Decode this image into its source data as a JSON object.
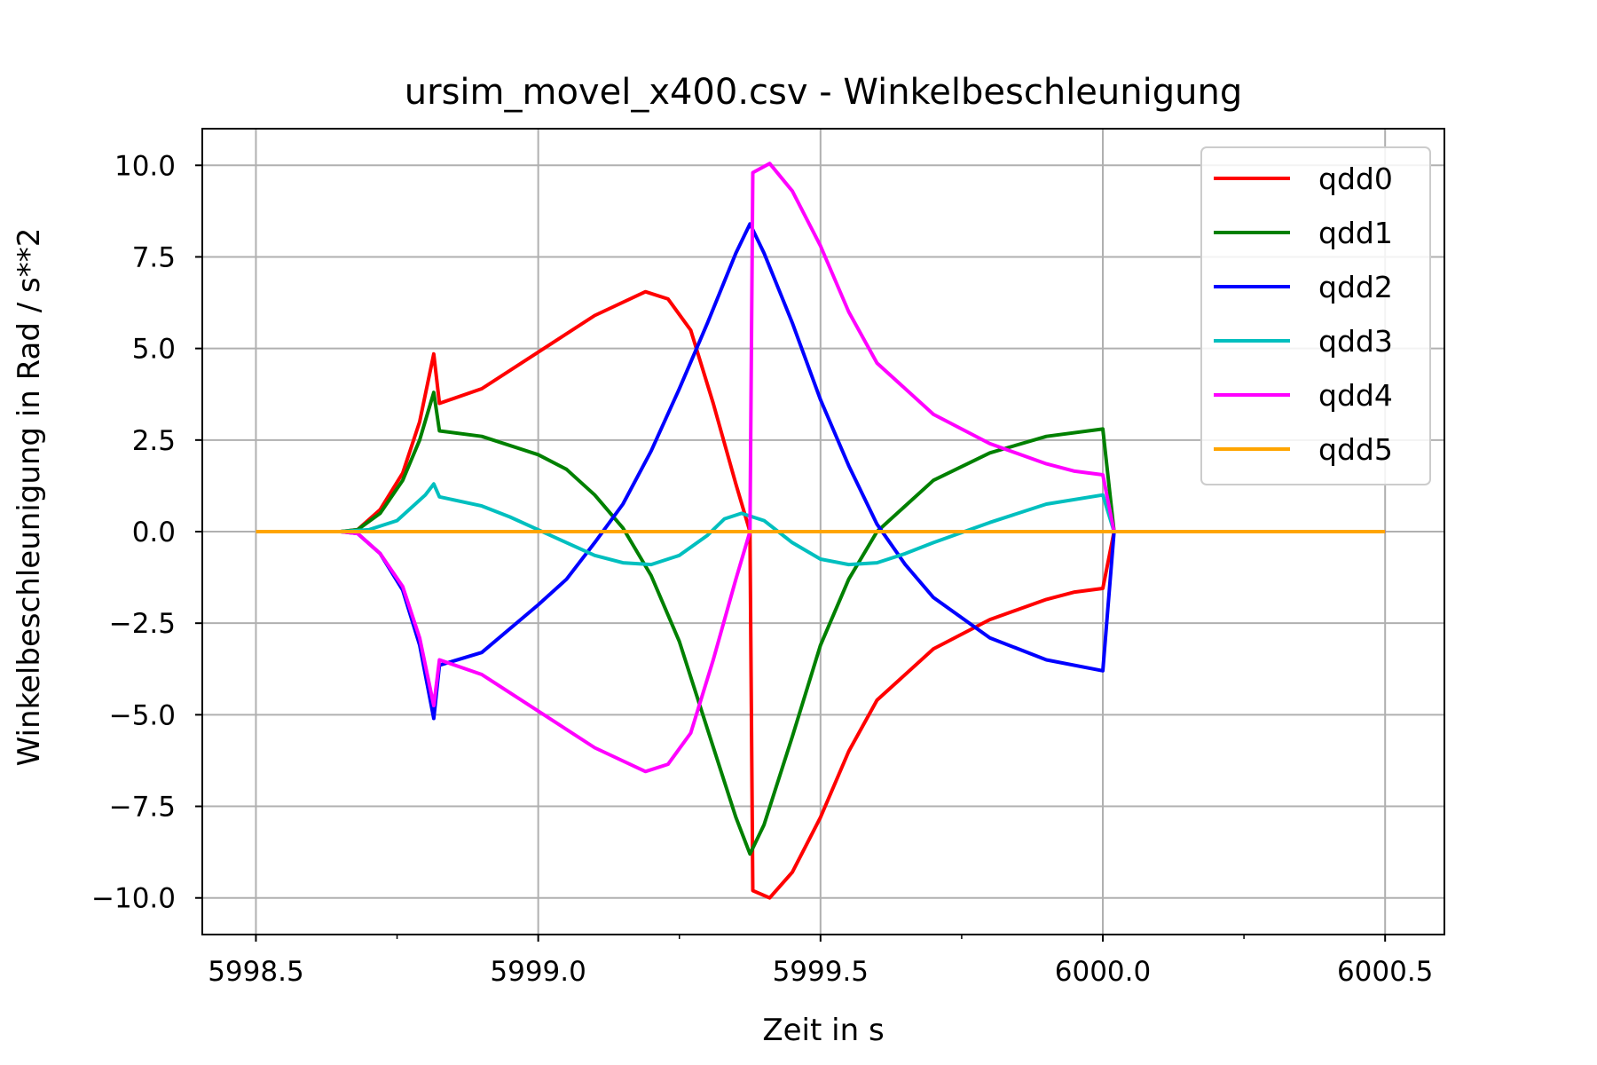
{
  "chart_data": {
    "type": "line",
    "title": "ursim_movel_x400.csv - Winkelbeschleunigung",
    "xlabel": "Zeit in s",
    "ylabel": "Winkelbeschleunigung in Rad / s**2",
    "xlim": [
      5998.405,
      6000.605
    ],
    "ylim": [
      -11.0,
      11.0
    ],
    "xticks": [
      5998.5,
      5999.0,
      5999.5,
      6000.0,
      6000.5
    ],
    "xtick_labels": [
      "5998.5",
      "5999.0",
      "5999.5",
      "6000.0",
      "6000.5"
    ],
    "xminor_ticks": [
      5998.75,
      5999.25,
      5999.75,
      6000.25
    ],
    "yticks": [
      10.0,
      7.5,
      5.0,
      2.5,
      0.0,
      -2.5,
      -5.0,
      -7.5,
      -10.0
    ],
    "ytick_labels": [
      "10.0",
      "7.5",
      "5.0",
      "2.5",
      "0.0",
      "−2.5",
      "−5.0",
      "−7.5",
      "−10.0"
    ],
    "grid": true,
    "legend_position": "top-right",
    "series": [
      {
        "name": "qdd0",
        "color": "#ff0000",
        "points": [
          [
            5998.5,
            0
          ],
          [
            5998.65,
            0
          ],
          [
            5998.68,
            0.05
          ],
          [
            5998.72,
            0.6
          ],
          [
            5998.76,
            1.6
          ],
          [
            5998.79,
            3.0
          ],
          [
            5998.815,
            4.85
          ],
          [
            5998.825,
            3.5
          ],
          [
            5998.9,
            3.9
          ],
          [
            5999.0,
            4.9
          ],
          [
            5999.1,
            5.9
          ],
          [
            5999.19,
            6.55
          ],
          [
            5999.23,
            6.35
          ],
          [
            5999.27,
            5.5
          ],
          [
            5999.31,
            3.5
          ],
          [
            5999.35,
            1.3
          ],
          [
            5999.375,
            0
          ],
          [
            5999.38,
            -9.8
          ],
          [
            5999.41,
            -10.0
          ],
          [
            5999.45,
            -9.3
          ],
          [
            5999.5,
            -7.8
          ],
          [
            5999.55,
            -6.0
          ],
          [
            5999.6,
            -4.6
          ],
          [
            5999.7,
            -3.2
          ],
          [
            5999.8,
            -2.4
          ],
          [
            5999.9,
            -1.85
          ],
          [
            5999.95,
            -1.65
          ],
          [
            6000.0,
            -1.55
          ],
          [
            6000.02,
            0
          ],
          [
            6000.5,
            0
          ]
        ]
      },
      {
        "name": "qdd1",
        "color": "#008000",
        "points": [
          [
            5998.5,
            0
          ],
          [
            5998.65,
            0
          ],
          [
            5998.68,
            0.05
          ],
          [
            5998.72,
            0.5
          ],
          [
            5998.76,
            1.4
          ],
          [
            5998.79,
            2.5
          ],
          [
            5998.815,
            3.8
          ],
          [
            5998.825,
            2.75
          ],
          [
            5998.9,
            2.6
          ],
          [
            5999.0,
            2.1
          ],
          [
            5999.05,
            1.7
          ],
          [
            5999.1,
            1.0
          ],
          [
            5999.15,
            0.1
          ],
          [
            5999.2,
            -1.2
          ],
          [
            5999.25,
            -3.0
          ],
          [
            5999.3,
            -5.4
          ],
          [
            5999.35,
            -7.8
          ],
          [
            5999.375,
            -8.8
          ],
          [
            5999.4,
            -8.0
          ],
          [
            5999.45,
            -5.6
          ],
          [
            5999.5,
            -3.1
          ],
          [
            5999.55,
            -1.3
          ],
          [
            5999.6,
            0
          ],
          [
            5999.7,
            1.4
          ],
          [
            5999.8,
            2.15
          ],
          [
            5999.9,
            2.6
          ],
          [
            6000.0,
            2.8
          ],
          [
            6000.02,
            0
          ],
          [
            6000.5,
            0
          ]
        ]
      },
      {
        "name": "qdd2",
        "color": "#0000ff",
        "points": [
          [
            5998.5,
            0
          ],
          [
            5998.65,
            0
          ],
          [
            5998.68,
            -0.05
          ],
          [
            5998.72,
            -0.6
          ],
          [
            5998.76,
            -1.6
          ],
          [
            5998.79,
            -3.1
          ],
          [
            5998.815,
            -5.1
          ],
          [
            5998.825,
            -3.65
          ],
          [
            5998.9,
            -3.3
          ],
          [
            5999.0,
            -2.0
          ],
          [
            5999.05,
            -1.3
          ],
          [
            5999.1,
            -0.3
          ],
          [
            5999.15,
            0.75
          ],
          [
            5999.2,
            2.2
          ],
          [
            5999.25,
            3.9
          ],
          [
            5999.3,
            5.7
          ],
          [
            5999.35,
            7.6
          ],
          [
            5999.375,
            8.4
          ],
          [
            5999.4,
            7.6
          ],
          [
            5999.45,
            5.7
          ],
          [
            5999.5,
            3.6
          ],
          [
            5999.55,
            1.8
          ],
          [
            5999.6,
            0.2
          ],
          [
            5999.65,
            -0.9
          ],
          [
            5999.7,
            -1.8
          ],
          [
            5999.8,
            -2.9
          ],
          [
            5999.9,
            -3.5
          ],
          [
            6000.0,
            -3.8
          ],
          [
            6000.02,
            0
          ],
          [
            6000.5,
            0
          ]
        ]
      },
      {
        "name": "qdd3",
        "color": "#00bfbf",
        "points": [
          [
            5998.5,
            0
          ],
          [
            5998.65,
            0
          ],
          [
            5998.7,
            0.05
          ],
          [
            5998.75,
            0.3
          ],
          [
            5998.8,
            1.0
          ],
          [
            5998.815,
            1.3
          ],
          [
            5998.825,
            0.95
          ],
          [
            5998.9,
            0.7
          ],
          [
            5998.95,
            0.4
          ],
          [
            5999.0,
            0.05
          ],
          [
            5999.05,
            -0.3
          ],
          [
            5999.1,
            -0.65
          ],
          [
            5999.15,
            -0.85
          ],
          [
            5999.2,
            -0.9
          ],
          [
            5999.25,
            -0.65
          ],
          [
            5999.3,
            -0.1
          ],
          [
            5999.33,
            0.35
          ],
          [
            5999.36,
            0.5
          ],
          [
            5999.4,
            0.3
          ],
          [
            5999.45,
            -0.3
          ],
          [
            5999.5,
            -0.75
          ],
          [
            5999.55,
            -0.9
          ],
          [
            5999.6,
            -0.85
          ],
          [
            5999.65,
            -0.6
          ],
          [
            5999.7,
            -0.3
          ],
          [
            5999.8,
            0.25
          ],
          [
            5999.9,
            0.75
          ],
          [
            6000.0,
            1.0
          ],
          [
            6000.02,
            0
          ],
          [
            6000.5,
            0
          ]
        ]
      },
      {
        "name": "qdd4",
        "color": "#ff00ff",
        "points": [
          [
            5998.5,
            0
          ],
          [
            5998.65,
            0
          ],
          [
            5998.68,
            -0.05
          ],
          [
            5998.72,
            -0.6
          ],
          [
            5998.76,
            -1.5
          ],
          [
            5998.79,
            -2.9
          ],
          [
            5998.815,
            -4.75
          ],
          [
            5998.825,
            -3.5
          ],
          [
            5998.9,
            -3.9
          ],
          [
            5999.0,
            -4.9
          ],
          [
            5999.1,
            -5.9
          ],
          [
            5999.19,
            -6.55
          ],
          [
            5999.23,
            -6.35
          ],
          [
            5999.27,
            -5.5
          ],
          [
            5999.31,
            -3.5
          ],
          [
            5999.35,
            -1.3
          ],
          [
            5999.375,
            0
          ],
          [
            5999.38,
            9.8
          ],
          [
            5999.41,
            10.05
          ],
          [
            5999.45,
            9.3
          ],
          [
            5999.5,
            7.8
          ],
          [
            5999.55,
            6.0
          ],
          [
            5999.6,
            4.6
          ],
          [
            5999.7,
            3.2
          ],
          [
            5999.8,
            2.4
          ],
          [
            5999.9,
            1.85
          ],
          [
            5999.95,
            1.65
          ],
          [
            6000.0,
            1.55
          ],
          [
            6000.02,
            0
          ],
          [
            6000.5,
            0
          ]
        ]
      },
      {
        "name": "qdd5",
        "color": "#ffa500",
        "points": [
          [
            5998.5,
            0
          ],
          [
            6000.5,
            0
          ]
        ]
      }
    ]
  }
}
